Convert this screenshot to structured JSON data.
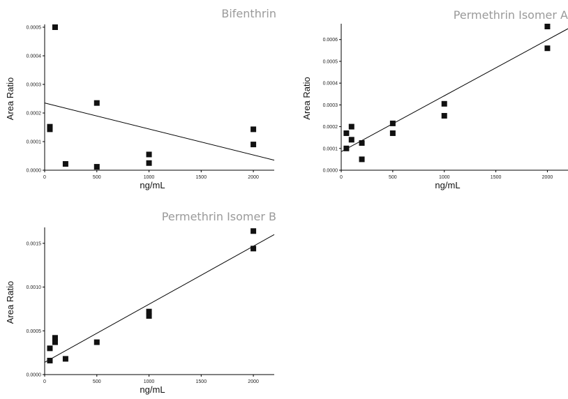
{
  "chart_data": [
    {
      "type": "scatter",
      "title": "Bifenthrin",
      "xlabel": "ng/mL",
      "ylabel": "Area Ratio",
      "xlim": [
        0,
        2200
      ],
      "ylim": [
        0,
        0.0005
      ],
      "xticks": [
        "0",
        "500",
        "1000",
        "1500",
        "2000"
      ],
      "yticks": [
        "0.0000",
        "0.0001",
        "0.0002",
        "0.0003",
        "0.0004",
        "0.0005"
      ],
      "points": [
        {
          "x": 50,
          "y": 0.000143
        },
        {
          "x": 50,
          "y": 0.000152
        },
        {
          "x": 100,
          "y": 0.0005
        },
        {
          "x": 200,
          "y": 2.2e-05
        },
        {
          "x": 500,
          "y": 1.2e-05
        },
        {
          "x": 500,
          "y": 0.000235
        },
        {
          "x": 1000,
          "y": 2.5e-05
        },
        {
          "x": 1000,
          "y": 5.5e-05
        },
        {
          "x": 2000,
          "y": 9e-05
        },
        {
          "x": 2000,
          "y": 0.000143
        }
      ],
      "fit_line": [
        {
          "x": 0,
          "y": 0.000235
        },
        {
          "x": 2200,
          "y": 3.5e-05
        }
      ]
    },
    {
      "type": "scatter",
      "title": "Permethrin Isomer A",
      "xlabel": "ng/mL",
      "ylabel": "Area Ratio",
      "xlim": [
        0,
        2200
      ],
      "ylim": [
        0,
        0.00066
      ],
      "xticks": [
        "0",
        "500",
        "1000",
        "1500",
        "2000"
      ],
      "yticks": [
        "0.0000",
        "0.0001",
        "0.0002",
        "0.0003",
        "0.0004",
        "0.0005",
        "0.0006"
      ],
      "points": [
        {
          "x": 50,
          "y": 0.0001
        },
        {
          "x": 50,
          "y": 0.00017
        },
        {
          "x": 100,
          "y": 0.00014
        },
        {
          "x": 100,
          "y": 0.0002
        },
        {
          "x": 200,
          "y": 5e-05
        },
        {
          "x": 200,
          "y": 0.000125
        },
        {
          "x": 500,
          "y": 0.00017
        },
        {
          "x": 500,
          "y": 0.000215
        },
        {
          "x": 1000,
          "y": 0.00025
        },
        {
          "x": 1000,
          "y": 0.000305
        },
        {
          "x": 2000,
          "y": 0.00056
        },
        {
          "x": 2000,
          "y": 0.00066
        }
      ],
      "fit_line": [
        {
          "x": 0,
          "y": 8.5e-05
        },
        {
          "x": 2200,
          "y": 0.00065
        }
      ]
    },
    {
      "type": "scatter",
      "title": "Permethrin Isomer B",
      "xlabel": "ng/mL",
      "ylabel": "Area Ratio",
      "xlim": [
        0,
        2200
      ],
      "ylim": [
        0,
        0.00165
      ],
      "xticks": [
        "0",
        "500",
        "1000",
        "1500",
        "2000"
      ],
      "yticks": [
        "0.0000",
        "0.0005",
        "0.0010",
        "0.0015"
      ],
      "points": [
        {
          "x": 50,
          "y": 0.00016
        },
        {
          "x": 50,
          "y": 0.0003
        },
        {
          "x": 100,
          "y": 0.00037
        },
        {
          "x": 100,
          "y": 0.00042
        },
        {
          "x": 200,
          "y": 0.00018
        },
        {
          "x": 500,
          "y": 0.00037
        },
        {
          "x": 1000,
          "y": 0.00067
        },
        {
          "x": 1000,
          "y": 0.00072
        },
        {
          "x": 2000,
          "y": 0.00144
        },
        {
          "x": 2000,
          "y": 0.00164
        }
      ],
      "fit_line": [
        {
          "x": 0,
          "y": 0.00014
        },
        {
          "x": 2200,
          "y": 0.0016
        }
      ]
    }
  ]
}
